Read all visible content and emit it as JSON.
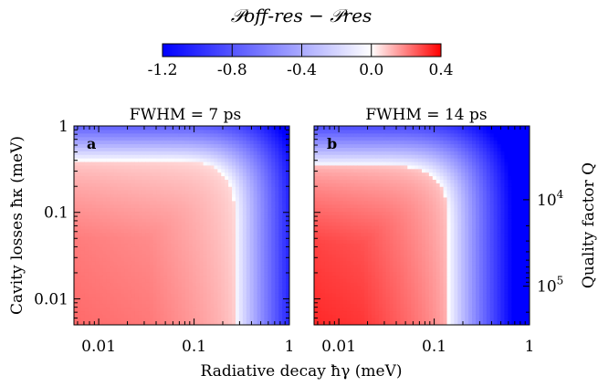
{
  "chart_data": [
    {
      "type": "heatmap",
      "title": "FWHM = 7 ps",
      "panel_label": "a",
      "xlabel": "Radiative decay ħγ (meV)",
      "ylabel": "Cavity losses ħκ (meV)",
      "x_scale": "log",
      "y_scale": "log",
      "xlim": [
        0.0055,
        1
      ],
      "ylim": [
        0.005,
        1
      ],
      "x_ticks": [
        0.01,
        0.1,
        1
      ],
      "x_tick_labels": [
        "0.01",
        "0.1",
        "1"
      ],
      "y_ticks": [
        0.01,
        0.1,
        1
      ],
      "y_tick_labels": [
        "0.01",
        "0.1",
        "1"
      ],
      "boundary_gamma_meV": 0.27,
      "boundary_knee_kappa_meV": 0.4,
      "min_value": 0.24,
      "max_value": -1.2
    },
    {
      "type": "heatmap",
      "title": "FWHM = 14 ps",
      "panel_label": "b",
      "xlabel": "Radiative decay ħγ (meV)",
      "x_scale": "log",
      "y_scale": "log",
      "xlim": [
        0.0055,
        1
      ],
      "ylim": [
        0.005,
        1
      ],
      "x_ticks": [
        0.01,
        0.1,
        1
      ],
      "x_tick_labels": [
        "0.01",
        "0.1",
        "1"
      ],
      "secondary_ylabel": "Quality factor Q",
      "secondary_y_ticks": [
        {
          "label": "10",
          "exponent": "4",
          "value_meV": 0.14
        },
        {
          "label": "10",
          "exponent": "5",
          "value_meV": 0.014
        }
      ],
      "boundary_gamma_meV": 0.14,
      "boundary_knee_kappa_meV": 0.35,
      "min_value": 0.36,
      "max_value": -1.2
    }
  ],
  "colorbar": {
    "title": "𝒫off-res − 𝒫res",
    "range": [
      -1.2,
      0.4
    ],
    "ticks": [
      -1.2,
      -0.8,
      -0.4,
      0.0,
      0.4
    ],
    "tick_labels": [
      "-1.2",
      "-0.8",
      "-0.4",
      "0.0",
      "0.4"
    ],
    "colors": {
      "negative": "#0000ff",
      "zero": "#ffffff",
      "positive": "#ff0000"
    }
  },
  "xlabel_shared": "Radiative decay ħγ (meV)"
}
